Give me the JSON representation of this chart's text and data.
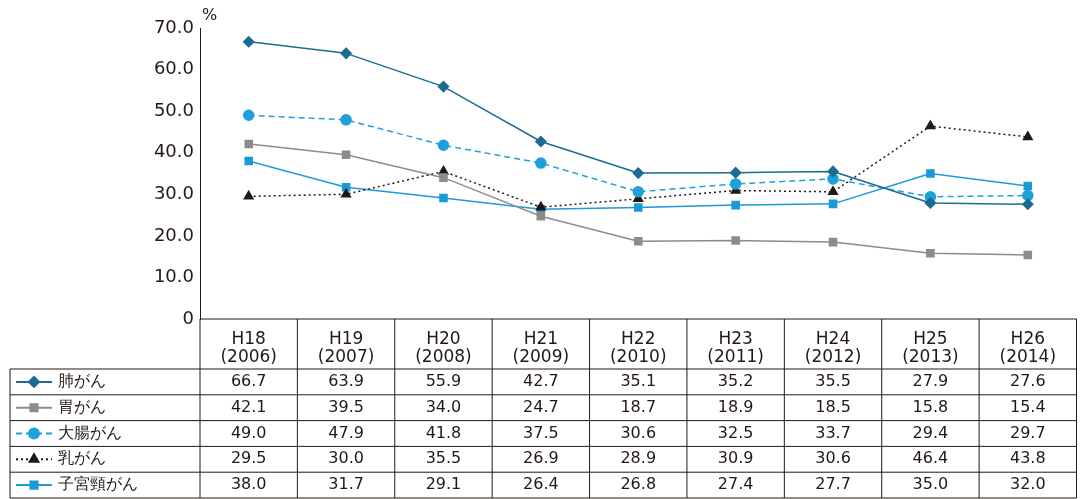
{
  "chart_data": {
    "type": "line",
    "ylabel": "%",
    "categories": [
      "H18\n(2006)",
      "H19\n(2007)",
      "H20\n(2008)",
      "H21\n(2009)",
      "H22\n(2010)",
      "H23\n(2011)",
      "H24\n(2012)",
      "H25\n(2013)",
      "H26\n(2014)"
    ],
    "ylim": [
      0,
      70
    ],
    "yticks": [
      0,
      {
        "value": 10,
        "label": "10.0"
      },
      {
        "value": 20,
        "label": "20.0"
      },
      {
        "value": 30,
        "label": "30.0"
      },
      {
        "value": 40,
        "label": "40.0"
      },
      {
        "value": 50,
        "label": "50.0"
      },
      {
        "value": 60,
        "label": "60.0"
      },
      {
        "value": 70,
        "label": "70.0"
      }
    ],
    "grid": false,
    "legend": "bottom left",
    "series": [
      {
        "name": "肺がん",
        "color": "#1b6b93",
        "marker": "diamond",
        "line_style": "solid",
        "values": [
          66.7,
          63.9,
          55.9,
          42.7,
          35.1,
          35.2,
          35.5,
          27.9,
          27.6
        ],
        "value_labels": [
          "66.7",
          "63.9",
          "55.9",
          "42.7",
          "35.1",
          "35.2",
          "35.5",
          "27.9",
          "27.6"
        ]
      },
      {
        "name": "胃がん",
        "color": "#8c8c8c",
        "marker": "square",
        "line_style": "solid",
        "values": [
          42.1,
          39.5,
          34.0,
          24.7,
          18.7,
          18.9,
          18.5,
          15.8,
          15.4
        ],
        "value_labels": [
          "42.1",
          "39.5",
          "34.0",
          "24.7",
          "18.7",
          "18.9",
          "18.5",
          "15.8",
          "15.4"
        ]
      },
      {
        "name": "大腸がん",
        "color": "#1fa0dc",
        "marker": "circle",
        "line_style": "dashed",
        "values": [
          49.0,
          47.9,
          41.8,
          37.5,
          30.6,
          32.5,
          33.7,
          29.4,
          29.7
        ],
        "value_labels": [
          "49.0",
          "47.9",
          "41.8",
          "37.5",
          "30.6",
          "32.5",
          "33.7",
          "29.4",
          "29.7"
        ]
      },
      {
        "name": "乳がん",
        "color": "#231815",
        "marker": "triangle",
        "line_style": "dotted",
        "values": [
          29.5,
          30.0,
          35.5,
          26.9,
          28.9,
          30.9,
          30.6,
          46.4,
          43.8
        ],
        "value_labels": [
          "29.5",
          "30.0",
          "35.5",
          "26.9",
          "28.9",
          "30.9",
          "30.6",
          "46.4",
          "43.8"
        ]
      },
      {
        "name": "子宮頸がん",
        "color": "#1a9ad6",
        "marker": "square",
        "line_style": "solid",
        "values": [
          38.0,
          31.7,
          29.1,
          26.4,
          26.8,
          27.4,
          27.7,
          35.0,
          32.0
        ],
        "value_labels": [
          "38.0",
          "31.7",
          "29.1",
          "26.4",
          "26.8",
          "27.4",
          "27.7",
          "35.0",
          "32.0"
        ]
      }
    ]
  }
}
